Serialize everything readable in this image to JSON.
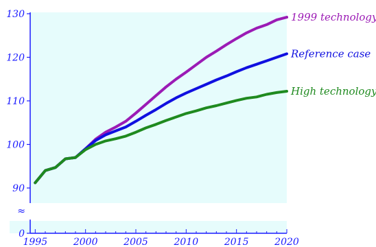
{
  "chart_data": {
    "type": "line",
    "title": "",
    "xlabel": "",
    "ylabel": "",
    "x": [
      1995,
      1996,
      1997,
      1998,
      1999,
      2000,
      2001,
      2002,
      2003,
      2004,
      2005,
      2006,
      2007,
      2008,
      2009,
      2010,
      2011,
      2012,
      2013,
      2014,
      2015,
      2016,
      2017,
      2018,
      2019,
      2020
    ],
    "xlim": [
      1994.5,
      2020
    ],
    "xticks": [
      "1995",
      "2000",
      "2005",
      "2010",
      "2015",
      "2020"
    ],
    "ylim": [
      0,
      130
    ],
    "yticks": [
      "0",
      "90",
      "100",
      "110",
      "120",
      "130"
    ],
    "axis_break": {
      "from": 0,
      "to": 87,
      "symbol": "≈"
    },
    "grid": false,
    "legend": "line-end labels (right)",
    "colors": {
      "background": "#e6fcfc",
      "axis": "#1a1aff",
      "tick_label": "#1a1aff"
    },
    "series": [
      {
        "name": "1999 technology",
        "color": "#9b1bb5",
        "values": [
          91.2,
          94.0,
          94.7,
          96.7,
          97.0,
          99.0,
          101.2,
          102.8,
          104.0,
          105.3,
          107.2,
          109.2,
          111.2,
          113.2,
          115.0,
          116.6,
          118.3,
          120.0,
          121.4,
          122.9,
          124.3,
          125.6,
          126.7,
          127.5,
          128.6,
          129.2
        ]
      },
      {
        "name": "Reference case",
        "color": "#1010e0",
        "values": [
          91.2,
          94.0,
          94.7,
          96.7,
          97.0,
          99.0,
          100.9,
          102.2,
          103.1,
          104.0,
          105.3,
          106.7,
          108.0,
          109.4,
          110.7,
          111.8,
          112.8,
          113.8,
          114.8,
          115.7,
          116.7,
          117.6,
          118.4,
          119.2,
          120.0,
          120.8
        ]
      },
      {
        "name": "High technology",
        "color": "#1f8a1f",
        "values": [
          91.2,
          94.0,
          94.7,
          96.7,
          97.0,
          98.8,
          100.0,
          100.8,
          101.3,
          101.9,
          102.8,
          103.8,
          104.6,
          105.5,
          106.3,
          107.1,
          107.7,
          108.4,
          108.9,
          109.5,
          110.1,
          110.6,
          110.9,
          111.5,
          111.9,
          112.2
        ]
      }
    ]
  }
}
